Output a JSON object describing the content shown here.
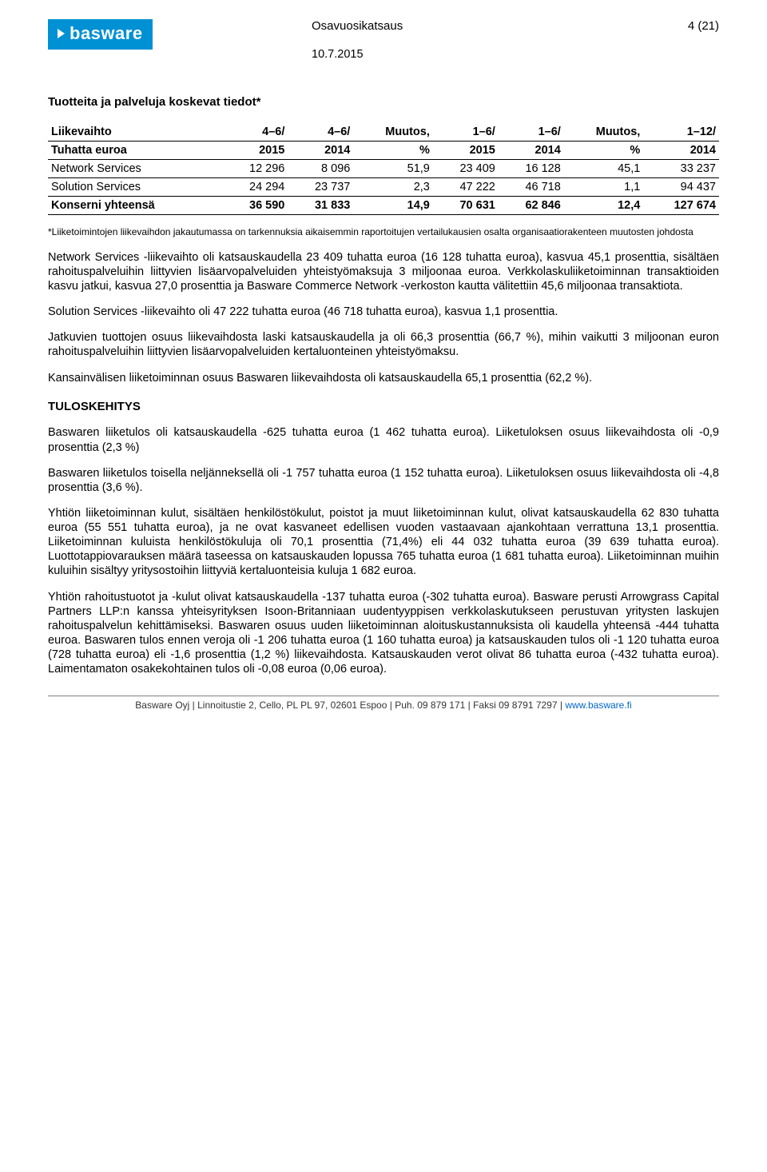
{
  "header": {
    "logo_text": "basware",
    "title": "Osavuosikatsaus",
    "page": "4 (21)",
    "date": "10.7.2015"
  },
  "section1": {
    "title": "Tuotteita ja palveluja koskevat tiedot*"
  },
  "table": {
    "columns_row1": [
      "Liikevaihto",
      "4–6/",
      "4–6/",
      "Muutos,",
      "1–6/",
      "1–6/",
      "Muutos,",
      "1–12/"
    ],
    "columns_row2": [
      "Tuhatta euroa",
      "2015",
      "2014",
      "%",
      "2015",
      "2014",
      "%",
      "2014"
    ],
    "rows": [
      {
        "label": "Network Services",
        "cells": [
          "12 296",
          "8 096",
          "51,9",
          "23 409",
          "16 128",
          "45,1",
          "33 237"
        ],
        "bold": false
      },
      {
        "label": "Solution Services",
        "cells": [
          "24 294",
          "23 737",
          "2,3",
          "47 222",
          "46 718",
          "1,1",
          "94 437"
        ],
        "bold": false
      },
      {
        "label": "Konserni yhteensä",
        "cells": [
          "36 590",
          "31 833",
          "14,9",
          "70 631",
          "62 846",
          "12,4",
          "127 674"
        ],
        "bold": true
      }
    ]
  },
  "footnote": "*Liiketoimintojen liikevaihdon jakautumassa on tarkennuksia aikaisemmin raportoitujen vertailukausien osalta organisaatiorakenteen muutosten johdosta",
  "paragraphs1": [
    "Network Services -liikevaihto oli katsauskaudella 23 409 tuhatta euroa (16 128 tuhatta euroa), kasvua 45,1 prosenttia, sisältäen rahoituspalveluihin liittyvien lisäarvopalveluiden yhteistyömaksuja 3 miljoonaa euroa. Verkkolaskuliiketoiminnan transaktioiden kasvu jatkui, kasvua 27,0 prosenttia ja Basware Commerce Network -verkoston kautta välitettiin 45,6 miljoonaa transaktiota.",
    "Solution Services -liikevaihto oli 47 222 tuhatta euroa (46 718 tuhatta euroa), kasvua 1,1 prosenttia.",
    "Jatkuvien tuottojen osuus liikevaihdosta laski katsauskaudella ja oli 66,3 prosenttia (66,7 %), mihin vaikutti 3 miljoonan euron rahoituspalveluihin liittyvien lisäarvopalveluiden kertaluonteinen yhteistyömaksu.",
    "Kansainvälisen liiketoiminnan osuus Baswaren liikevaihdosta oli katsauskaudella 65,1 prosenttia (62,2 %)."
  ],
  "subsection_title": "TULOSKEHITYS",
  "paragraphs2": [
    "Baswaren liiketulos oli katsauskaudella -625 tuhatta euroa (1 462 tuhatta euroa). Liiketuloksen osuus liikevaihdosta oli -0,9 prosenttia (2,3 %)",
    "Baswaren liiketulos toisella neljänneksellä oli -1 757 tuhatta euroa (1 152 tuhatta euroa). Liiketuloksen osuus liikevaihdosta oli -4,8 prosenttia (3,6 %).",
    "Yhtiön liiketoiminnan kulut, sisältäen henkilöstökulut, poistot ja muut liiketoiminnan kulut, olivat katsauskaudella 62 830 tuhatta euroa (55 551 tuhatta euroa), ja ne ovat kasvaneet edellisen vuoden vastaavaan ajankohtaan verrattuna 13,1 prosenttia. Liiketoiminnan kuluista henkilöstökuluja oli 70,1 prosenttia (71,4%) eli 44 032 tuhatta euroa (39 639 tuhatta euroa). Luottotappiovarauksen määrä taseessa on katsauskauden lopussa 765 tuhatta euroa (1 681 tuhatta euroa). Liiketoiminnan muihin kuluihin sisältyy yritysostoihin liittyviä kertaluonteisia kuluja 1 682 euroa.",
    "Yhtiön rahoitustuotot ja -kulut olivat katsauskaudella -137 tuhatta euroa (-302 tuhatta euroa). Basware perusti Arrowgrass Capital Partners LLP:n kanssa yhteisyrityksen Isoon-Britanniaan uudentyyppisen verkkolaskutukseen perustuvan yritysten laskujen rahoituspalvelun kehittämiseksi. Baswaren osuus uuden liiketoiminnan aloituskustannuksista oli kaudella yhteensä -444 tuhatta euroa. Baswaren tulos ennen veroja oli -1 206 tuhatta euroa (1 160 tuhatta euroa) ja katsauskauden tulos oli -1 120 tuhatta euroa (728 tuhatta euroa) eli -1,6 prosenttia (1,2 %) liikevaihdosta. Katsauskauden verot olivat 86 tuhatta euroa (-432 tuhatta euroa). Laimentamaton osakekohtainen tulos oli -0,08 euroa (0,06 euroa)."
  ],
  "footer": {
    "company": "Basware Oyj",
    "sep": " | ",
    "address": "Linnoitustie 2, Cello, PL PL 97, 02601 Espoo",
    "phone_label": "Puh. ",
    "phone": "09 879 171",
    "fax_label": "Faksi ",
    "fax": "09  8791 7297",
    "url": "www.basware.fi"
  }
}
